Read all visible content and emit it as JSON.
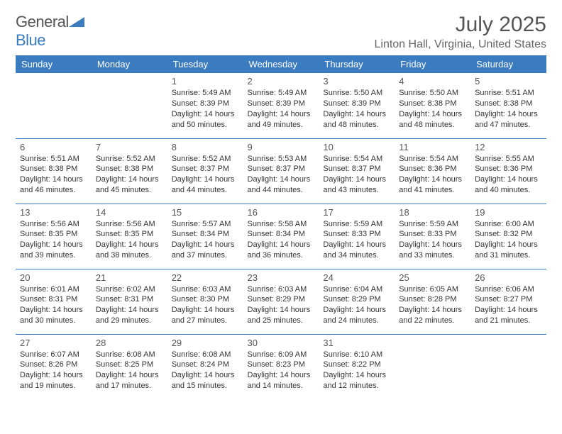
{
  "logo": {
    "text1": "General",
    "text2": "Blue"
  },
  "title": "July 2025",
  "location": "Linton Hall, Virginia, United States",
  "colors": {
    "brand": "#3b7bbf",
    "text": "#333333",
    "muted": "#555555"
  },
  "weekdays": [
    "Sunday",
    "Monday",
    "Tuesday",
    "Wednesday",
    "Thursday",
    "Friday",
    "Saturday"
  ],
  "weeks": [
    [
      null,
      null,
      {
        "n": "1",
        "sr": "Sunrise: 5:49 AM",
        "ss": "Sunset: 8:39 PM",
        "d1": "Daylight: 14 hours",
        "d2": "and 50 minutes."
      },
      {
        "n": "2",
        "sr": "Sunrise: 5:49 AM",
        "ss": "Sunset: 8:39 PM",
        "d1": "Daylight: 14 hours",
        "d2": "and 49 minutes."
      },
      {
        "n": "3",
        "sr": "Sunrise: 5:50 AM",
        "ss": "Sunset: 8:39 PM",
        "d1": "Daylight: 14 hours",
        "d2": "and 48 minutes."
      },
      {
        "n": "4",
        "sr": "Sunrise: 5:50 AM",
        "ss": "Sunset: 8:38 PM",
        "d1": "Daylight: 14 hours",
        "d2": "and 48 minutes."
      },
      {
        "n": "5",
        "sr": "Sunrise: 5:51 AM",
        "ss": "Sunset: 8:38 PM",
        "d1": "Daylight: 14 hours",
        "d2": "and 47 minutes."
      }
    ],
    [
      {
        "n": "6",
        "sr": "Sunrise: 5:51 AM",
        "ss": "Sunset: 8:38 PM",
        "d1": "Daylight: 14 hours",
        "d2": "and 46 minutes."
      },
      {
        "n": "7",
        "sr": "Sunrise: 5:52 AM",
        "ss": "Sunset: 8:38 PM",
        "d1": "Daylight: 14 hours",
        "d2": "and 45 minutes."
      },
      {
        "n": "8",
        "sr": "Sunrise: 5:52 AM",
        "ss": "Sunset: 8:37 PM",
        "d1": "Daylight: 14 hours",
        "d2": "and 44 minutes."
      },
      {
        "n": "9",
        "sr": "Sunrise: 5:53 AM",
        "ss": "Sunset: 8:37 PM",
        "d1": "Daylight: 14 hours",
        "d2": "and 44 minutes."
      },
      {
        "n": "10",
        "sr": "Sunrise: 5:54 AM",
        "ss": "Sunset: 8:37 PM",
        "d1": "Daylight: 14 hours",
        "d2": "and 43 minutes."
      },
      {
        "n": "11",
        "sr": "Sunrise: 5:54 AM",
        "ss": "Sunset: 8:36 PM",
        "d1": "Daylight: 14 hours",
        "d2": "and 41 minutes."
      },
      {
        "n": "12",
        "sr": "Sunrise: 5:55 AM",
        "ss": "Sunset: 8:36 PM",
        "d1": "Daylight: 14 hours",
        "d2": "and 40 minutes."
      }
    ],
    [
      {
        "n": "13",
        "sr": "Sunrise: 5:56 AM",
        "ss": "Sunset: 8:35 PM",
        "d1": "Daylight: 14 hours",
        "d2": "and 39 minutes."
      },
      {
        "n": "14",
        "sr": "Sunrise: 5:56 AM",
        "ss": "Sunset: 8:35 PM",
        "d1": "Daylight: 14 hours",
        "d2": "and 38 minutes."
      },
      {
        "n": "15",
        "sr": "Sunrise: 5:57 AM",
        "ss": "Sunset: 8:34 PM",
        "d1": "Daylight: 14 hours",
        "d2": "and 37 minutes."
      },
      {
        "n": "16",
        "sr": "Sunrise: 5:58 AM",
        "ss": "Sunset: 8:34 PM",
        "d1": "Daylight: 14 hours",
        "d2": "and 36 minutes."
      },
      {
        "n": "17",
        "sr": "Sunrise: 5:59 AM",
        "ss": "Sunset: 8:33 PM",
        "d1": "Daylight: 14 hours",
        "d2": "and 34 minutes."
      },
      {
        "n": "18",
        "sr": "Sunrise: 5:59 AM",
        "ss": "Sunset: 8:33 PM",
        "d1": "Daylight: 14 hours",
        "d2": "and 33 minutes."
      },
      {
        "n": "19",
        "sr": "Sunrise: 6:00 AM",
        "ss": "Sunset: 8:32 PM",
        "d1": "Daylight: 14 hours",
        "d2": "and 31 minutes."
      }
    ],
    [
      {
        "n": "20",
        "sr": "Sunrise: 6:01 AM",
        "ss": "Sunset: 8:31 PM",
        "d1": "Daylight: 14 hours",
        "d2": "and 30 minutes."
      },
      {
        "n": "21",
        "sr": "Sunrise: 6:02 AM",
        "ss": "Sunset: 8:31 PM",
        "d1": "Daylight: 14 hours",
        "d2": "and 29 minutes."
      },
      {
        "n": "22",
        "sr": "Sunrise: 6:03 AM",
        "ss": "Sunset: 8:30 PM",
        "d1": "Daylight: 14 hours",
        "d2": "and 27 minutes."
      },
      {
        "n": "23",
        "sr": "Sunrise: 6:03 AM",
        "ss": "Sunset: 8:29 PM",
        "d1": "Daylight: 14 hours",
        "d2": "and 25 minutes."
      },
      {
        "n": "24",
        "sr": "Sunrise: 6:04 AM",
        "ss": "Sunset: 8:29 PM",
        "d1": "Daylight: 14 hours",
        "d2": "and 24 minutes."
      },
      {
        "n": "25",
        "sr": "Sunrise: 6:05 AM",
        "ss": "Sunset: 8:28 PM",
        "d1": "Daylight: 14 hours",
        "d2": "and 22 minutes."
      },
      {
        "n": "26",
        "sr": "Sunrise: 6:06 AM",
        "ss": "Sunset: 8:27 PM",
        "d1": "Daylight: 14 hours",
        "d2": "and 21 minutes."
      }
    ],
    [
      {
        "n": "27",
        "sr": "Sunrise: 6:07 AM",
        "ss": "Sunset: 8:26 PM",
        "d1": "Daylight: 14 hours",
        "d2": "and 19 minutes."
      },
      {
        "n": "28",
        "sr": "Sunrise: 6:08 AM",
        "ss": "Sunset: 8:25 PM",
        "d1": "Daylight: 14 hours",
        "d2": "and 17 minutes."
      },
      {
        "n": "29",
        "sr": "Sunrise: 6:08 AM",
        "ss": "Sunset: 8:24 PM",
        "d1": "Daylight: 14 hours",
        "d2": "and 15 minutes."
      },
      {
        "n": "30",
        "sr": "Sunrise: 6:09 AM",
        "ss": "Sunset: 8:23 PM",
        "d1": "Daylight: 14 hours",
        "d2": "and 14 minutes."
      },
      {
        "n": "31",
        "sr": "Sunrise: 6:10 AM",
        "ss": "Sunset: 8:22 PM",
        "d1": "Daylight: 14 hours",
        "d2": "and 12 minutes."
      },
      null,
      null
    ]
  ]
}
